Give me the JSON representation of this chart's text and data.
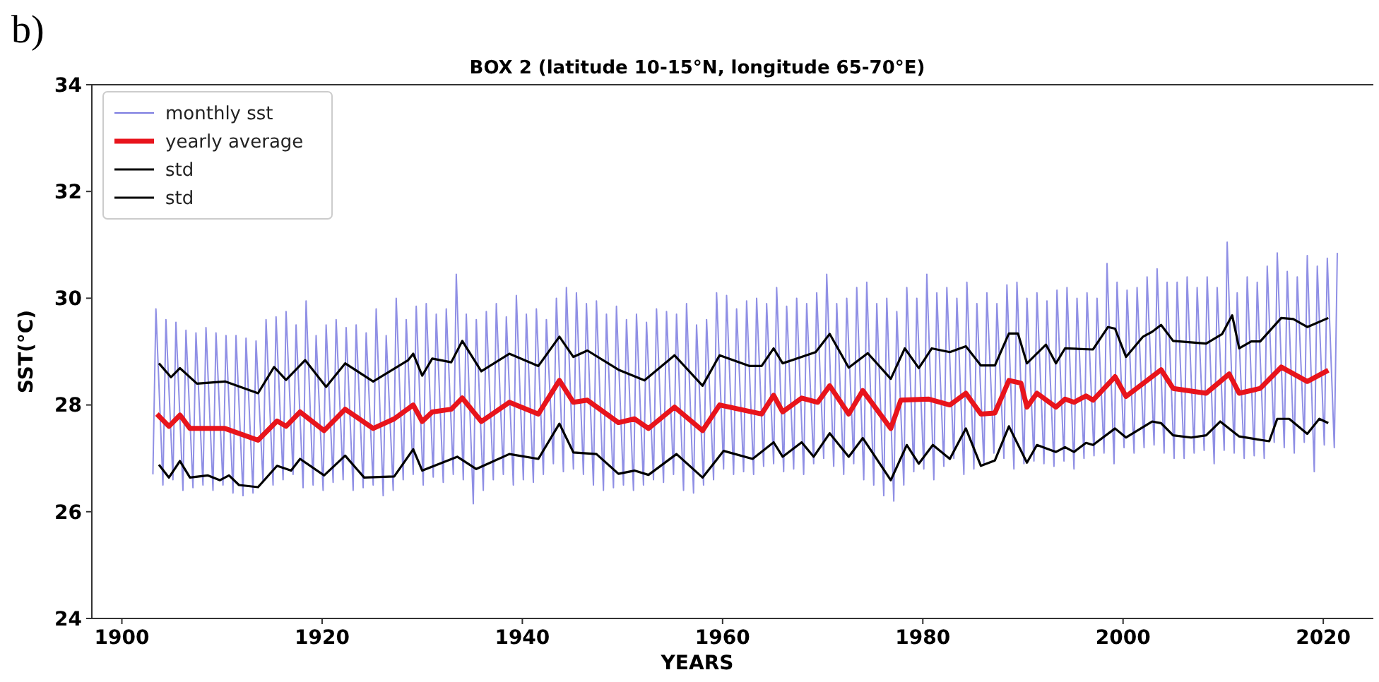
{
  "chart_data": {
    "type": "line",
    "title": "BOX 2 (latitude 10-15°N, longitude 65-70°E)",
    "xlabel": "YEARS",
    "ylabel": "SST(°C)",
    "annotations": [
      "b)"
    ],
    "xlim": [
      1897,
      2025
    ],
    "xticks": [
      1900,
      1920,
      1940,
      1960,
      1980,
      2000,
      2020
    ],
    "ylim": [
      24,
      34
    ],
    "yticks": [
      24,
      26,
      28,
      30,
      32,
      34
    ],
    "grid": false,
    "legend": "top left",
    "series": [
      {
        "name": "monthly sst",
        "color": "#7b7be0",
        "x": [
          1903.1,
          1903.4,
          1904.1,
          1904.4,
          1905.1,
          1905.4,
          1906.1,
          1906.4,
          1907.1,
          1907.4,
          1908.1,
          1908.4,
          1909.1,
          1909.4,
          1910.1,
          1910.4,
          1911.1,
          1911.4,
          1912.1,
          1912.4,
          1913.1,
          1913.4,
          1914.1,
          1914.4,
          1915.1,
          1915.4,
          1916.1,
          1916.4,
          1917.1,
          1917.4,
          1918.1,
          1918.4,
          1919.1,
          1919.4,
          1920.1,
          1920.4,
          1921.1,
          1921.4,
          1922.1,
          1922.4,
          1923.1,
          1923.4,
          1924.1,
          1924.4,
          1925.1,
          1925.4,
          1926.1,
          1926.4,
          1927.1,
          1927.4,
          1928.1,
          1928.4,
          1929.1,
          1929.4,
          1930.1,
          1930.4,
          1931.1,
          1931.4,
          1932.1,
          1932.4,
          1933.1,
          1933.4,
          1934.1,
          1934.4,
          1935.1,
          1935.4,
          1936.1,
          1936.4,
          1937.1,
          1937.4,
          1938.1,
          1938.4,
          1939.1,
          1939.4,
          1940.1,
          1940.4,
          1941.1,
          1941.4,
          1942.1,
          1942.4,
          1943.1,
          1943.4,
          1944.1,
          1944.4,
          1945.1,
          1945.4,
          1946.1,
          1946.4,
          1947.1,
          1947.4,
          1948.1,
          1948.4,
          1949.1,
          1949.4,
          1950.1,
          1950.4,
          1951.1,
          1951.4,
          1952.1,
          1952.4,
          1953.1,
          1953.4,
          1954.1,
          1954.4,
          1955.1,
          1955.4,
          1956.1,
          1956.4,
          1957.1,
          1957.4,
          1958.1,
          1958.4,
          1959.1,
          1959.4,
          1960.1,
          1960.4,
          1961.1,
          1961.4,
          1962.1,
          1962.4,
          1963.1,
          1963.4,
          1964.1,
          1964.4,
          1965.1,
          1965.4,
          1966.1,
          1966.4,
          1967.1,
          1967.4,
          1968.1,
          1968.4,
          1969.1,
          1969.4,
          1970.1,
          1970.4,
          1971.1,
          1971.4,
          1972.1,
          1972.4,
          1973.1,
          1973.4,
          1974.1,
          1974.4,
          1975.1,
          1975.4,
          1976.1,
          1976.4,
          1977.1,
          1977.4,
          1978.1,
          1978.4,
          1979.1,
          1979.4,
          1980.1,
          1980.4,
          1981.1,
          1981.4,
          1982.1,
          1982.4,
          1983.1,
          1983.4,
          1984.1,
          1984.4,
          1985.1,
          1985.4,
          1986.1,
          1986.4,
          1987.1,
          1987.4,
          1988.1,
          1988.4,
          1989.1,
          1989.4,
          1990.1,
          1990.4,
          1991.1,
          1991.4,
          1992.1,
          1992.4,
          1993.1,
          1993.4,
          1994.1,
          1994.4,
          1995.1,
          1995.4,
          1996.1,
          1996.4,
          1997.1,
          1997.4,
          1998.1,
          1998.4,
          1999.1,
          1999.4,
          2000.1,
          2000.4,
          2001.1,
          2001.4,
          2002.1,
          2002.4,
          2003.1,
          2003.4,
          2004.1,
          2004.4,
          2005.1,
          2005.4,
          2006.1,
          2006.4,
          2007.1,
          2007.4,
          2008.1,
          2008.4,
          2009.1,
          2009.4,
          2010.1,
          2010.4,
          2011.1,
          2011.4,
          2012.1,
          2012.4,
          2013.1,
          2013.4,
          2014.1,
          2014.4,
          2015.1,
          2015.4,
          2016.1,
          2016.4,
          2017.1,
          2017.4,
          2018.1,
          2018.4,
          2019.1,
          2019.4,
          2020.1,
          2020.4,
          2021.1,
          2021.4
        ],
        "values": [
          26.7,
          29.8,
          26.5,
          29.6,
          26.6,
          29.55,
          26.4,
          29.4,
          26.45,
          29.35,
          26.5,
          29.45,
          26.4,
          29.35,
          26.5,
          29.3,
          26.35,
          29.3,
          26.3,
          29.25,
          26.35,
          29.2,
          26.55,
          29.6,
          26.5,
          29.65,
          26.6,
          29.75,
          26.7,
          29.5,
          26.45,
          29.95,
          26.5,
          29.3,
          26.4,
          29.5,
          26.55,
          29.6,
          26.6,
          29.45,
          26.4,
          29.5,
          26.45,
          29.35,
          26.5,
          29.8,
          26.3,
          29.3,
          26.4,
          30.0,
          26.6,
          29.6,
          26.7,
          29.85,
          26.5,
          29.9,
          26.65,
          29.7,
          26.55,
          29.8,
          26.7,
          30.45,
          26.6,
          29.7,
          26.15,
          29.6,
          26.4,
          29.75,
          26.6,
          29.9,
          26.7,
          29.65,
          26.5,
          30.05,
          26.6,
          29.7,
          26.55,
          29.8,
          26.7,
          29.6,
          26.9,
          30.0,
          26.75,
          30.2,
          26.8,
          30.1,
          26.7,
          29.9,
          26.5,
          29.95,
          26.4,
          29.7,
          26.45,
          29.85,
          26.5,
          29.6,
          26.4,
          29.7,
          26.5,
          29.55,
          26.6,
          29.8,
          26.55,
          29.75,
          26.7,
          29.7,
          26.4,
          29.9,
          26.35,
          29.5,
          26.5,
          29.6,
          26.6,
          30.1,
          26.8,
          30.05,
          26.7,
          29.8,
          26.75,
          29.95,
          26.7,
          30.0,
          26.85,
          29.9,
          26.9,
          30.2,
          26.75,
          29.85,
          26.8,
          30.0,
          26.7,
          29.9,
          26.9,
          30.1,
          27.0,
          30.45,
          26.85,
          29.9,
          26.7,
          30.0,
          26.9,
          30.2,
          26.6,
          30.3,
          26.5,
          29.9,
          26.3,
          30.0,
          26.2,
          29.75,
          26.5,
          30.2,
          26.75,
          30.0,
          26.8,
          30.45,
          26.6,
          30.1,
          26.85,
          30.2,
          27.0,
          30.0,
          26.7,
          30.3,
          26.8,
          29.9,
          26.9,
          30.1,
          27.1,
          29.9,
          27.0,
          30.25,
          26.8,
          30.3,
          26.9,
          30.0,
          26.95,
          30.1,
          26.9,
          29.95,
          26.85,
          30.15,
          26.95,
          30.2,
          26.8,
          30.0,
          27.0,
          30.1,
          27.05,
          30.0,
          27.1,
          30.65,
          26.9,
          30.3,
          27.2,
          30.15,
          27.1,
          30.2,
          27.2,
          30.4,
          27.25,
          30.55,
          27.1,
          30.3,
          27.0,
          30.3,
          27.0,
          30.4,
          27.1,
          30.2,
          27.15,
          30.4,
          26.9,
          30.2,
          27.15,
          31.05,
          27.1,
          30.1,
          27.0,
          30.4,
          27.05,
          30.3,
          27.0,
          30.6,
          27.3,
          30.85,
          27.2,
          30.5,
          27.1,
          30.4,
          27.3,
          30.8,
          26.75,
          30.6,
          27.25,
          30.75,
          27.2,
          30.85
        ]
      },
      {
        "name": "yearly average",
        "color": "#e8141c",
        "x": [
          1903.5,
          1904.7,
          1905.8,
          1906.8,
          1910.3,
          1913.6,
          1915.5,
          1916.4,
          1917.8,
          1920.2,
          1922.3,
          1925.1,
          1927.2,
          1929.1,
          1930,
          1931,
          1932.9,
          1934,
          1935.9,
          1938.7,
          1941.6,
          1943.7,
          1945.1,
          1946.5,
          1949.6,
          1951.2,
          1952.6,
          1955.2,
          1958,
          1959.7,
          1963.9,
          1965.1,
          1966,
          1967.9,
          1969.5,
          1970.7,
          1972.6,
          1974,
          1976.8,
          1977.8,
          1980.6,
          1982.7,
          1984.3,
          1985.8,
          1987.2,
          1988.6,
          1989.8,
          1990.4,
          1991.4,
          1993.3,
          1994.2,
          1995.1,
          1996.3,
          1997,
          1999.2,
          2000.3,
          2003.8,
          2005,
          2008.3,
          2010.6,
          2011.6,
          2013.7,
          2015.8,
          2018.4,
          2020.5
        ],
        "values": [
          27.83,
          27.6,
          27.81,
          27.56,
          27.56,
          27.34,
          27.7,
          27.6,
          27.87,
          27.52,
          27.92,
          27.56,
          27.74,
          28.0,
          27.69,
          27.87,
          27.92,
          28.13,
          27.69,
          28.05,
          27.83,
          28.46,
          28.05,
          28.09,
          27.67,
          27.74,
          27.56,
          27.96,
          27.52,
          28.0,
          27.83,
          28.18,
          27.87,
          28.13,
          28.05,
          28.36,
          27.83,
          28.27,
          27.56,
          28.09,
          28.11,
          28.0,
          28.22,
          27.83,
          27.85,
          28.46,
          28.41,
          27.96,
          28.22,
          27.96,
          28.11,
          28.05,
          28.17,
          28.09,
          28.53,
          28.16,
          28.66,
          28.31,
          28.22,
          28.58,
          28.22,
          28.31,
          28.71,
          28.44,
          28.65
        ]
      },
      {
        "name": "std",
        "color": "#000000",
        "x": [
          1903.7,
          1904.9,
          1905.8,
          1907.5,
          1910.3,
          1913.6,
          1915.2,
          1916.4,
          1918.3,
          1920.4,
          1922.3,
          1925.1,
          1928.6,
          1929.1,
          1930,
          1931,
          1932.9,
          1934,
          1935.9,
          1938.7,
          1941.6,
          1943.7,
          1945.1,
          1946.5,
          1949.6,
          1952.2,
          1955.2,
          1958,
          1959.7,
          1962.7,
          1963.9,
          1965.1,
          1966,
          1969.3,
          1970.7,
          1972.6,
          1974.5,
          1976.8,
          1978.2,
          1979.6,
          1980.9,
          1982.7,
          1984.3,
          1985.8,
          1987.2,
          1988.6,
          1989.5,
          1990.4,
          1992.3,
          1993.3,
          1994.2,
          1997,
          1998.5,
          1999.2,
          2000.3,
          2002,
          2002.9,
          2003.8,
          2005,
          2008.3,
          2009.9,
          2010.9,
          2011.6,
          2012.8,
          2013.7,
          2015.8,
          2017,
          2018.4,
          2020.5
        ],
        "values": [
          28.78,
          28.52,
          28.69,
          28.4,
          28.44,
          28.22,
          28.71,
          28.47,
          28.84,
          28.34,
          28.78,
          28.44,
          28.84,
          28.96,
          28.55,
          28.87,
          28.8,
          29.2,
          28.63,
          28.96,
          28.73,
          29.28,
          28.9,
          29.02,
          28.66,
          28.46,
          28.93,
          28.36,
          28.93,
          28.73,
          28.73,
          29.06,
          28.78,
          28.99,
          29.33,
          28.7,
          28.97,
          28.49,
          29.06,
          28.69,
          29.06,
          28.99,
          29.1,
          28.74,
          28.74,
          29.34,
          29.34,
          28.78,
          29.13,
          28.78,
          29.06,
          29.04,
          29.46,
          29.43,
          28.9,
          29.28,
          29.37,
          29.5,
          29.2,
          29.15,
          29.33,
          29.68,
          29.06,
          29.19,
          29.19,
          29.63,
          29.61,
          29.46,
          29.63
        ]
      },
      {
        "name": "std",
        "color": "#000000",
        "x": [
          1903.7,
          1904.7,
          1905.8,
          1906.8,
          1908.6,
          1909.8,
          1910.7,
          1911.7,
          1913.6,
          1915.5,
          1916.9,
          1917.8,
          1920.2,
          1922.3,
          1924.2,
          1927.2,
          1929.1,
          1930,
          1933.5,
          1935.4,
          1938.7,
          1941.6,
          1943.7,
          1945.1,
          1947.4,
          1949.6,
          1951.2,
          1952.6,
          1955.4,
          1958,
          1960.1,
          1963,
          1965.1,
          1966,
          1967.9,
          1969.1,
          1970.7,
          1972.6,
          1974,
          1976.8,
          1978.4,
          1979.6,
          1981,
          1982.7,
          1984.3,
          1985.8,
          1987.2,
          1988.6,
          1990.4,
          1991.4,
          1993.3,
          1994.2,
          1995.1,
          1996.3,
          1997,
          1999.2,
          2000.3,
          2002.9,
          2003.8,
          2005,
          2006.8,
          2008.3,
          2009.7,
          2011.6,
          2014.6,
          2015.4,
          2016.6,
          2018.4,
          2019.6,
          2020.5
        ],
        "values": [
          26.88,
          26.64,
          26.95,
          26.64,
          26.68,
          26.59,
          26.68,
          26.5,
          26.46,
          26.86,
          26.77,
          26.99,
          26.68,
          27.05,
          26.64,
          26.66,
          27.17,
          26.77,
          27.03,
          26.8,
          27.08,
          26.99,
          27.65,
          27.11,
          27.08,
          26.71,
          26.77,
          26.69,
          27.08,
          26.64,
          27.14,
          26.99,
          27.3,
          27.03,
          27.3,
          27.03,
          27.47,
          27.03,
          27.38,
          26.59,
          27.25,
          26.9,
          27.25,
          26.99,
          27.56,
          26.86,
          26.96,
          27.6,
          26.92,
          27.25,
          27.12,
          27.21,
          27.12,
          27.29,
          27.25,
          27.56,
          27.39,
          27.69,
          27.66,
          27.43,
          27.39,
          27.43,
          27.69,
          27.41,
          27.32,
          27.74,
          27.74,
          27.46,
          27.74,
          27.66
        ]
      }
    ]
  }
}
